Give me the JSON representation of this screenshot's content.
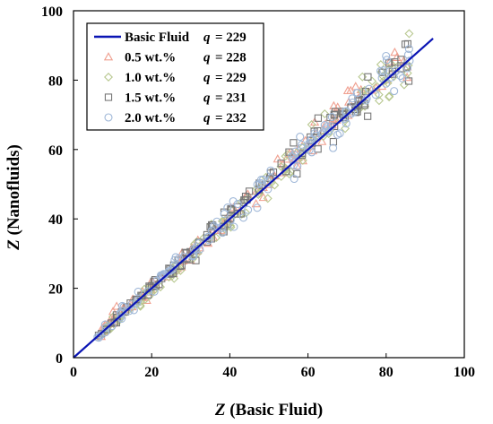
{
  "chart_data": {
    "type": "scatter",
    "title": "",
    "xlabel": {
      "var": "Z",
      "rest": " (Basic Fluid)"
    },
    "ylabel": {
      "var": "Z",
      "rest": " (Nanofluids)"
    },
    "xlim": [
      0,
      100
    ],
    "ylim": [
      0,
      100
    ],
    "xticks": [
      0,
      20,
      40,
      60,
      80,
      100
    ],
    "yticks": [
      0,
      20,
      40,
      60,
      80,
      100
    ],
    "grid": false,
    "legend_position": "top-left",
    "line": {
      "name": "Basic Fluid",
      "q_label": "q",
      "q_value": "= 229",
      "color": "#0a14b4",
      "x": [
        0,
        92
      ],
      "y": [
        0,
        92
      ]
    },
    "series": [
      {
        "name": "0.5 wt.%",
        "q_label": "q",
        "q_value": "= 228",
        "marker": "triangle",
        "color": "#f0a090",
        "offset": 0.4,
        "seed": 11
      },
      {
        "name": "1.0 wt.%",
        "q_label": "q",
        "q_value": "= 229",
        "marker": "diamond",
        "color": "#b8c890",
        "offset": -0.3,
        "seed": 23
      },
      {
        "name": "1.5 wt.%",
        "q_label": "q",
        "q_value": "= 231",
        "marker": "square",
        "color": "#787878",
        "offset": 0.0,
        "seed": 37
      },
      {
        "name": "2.0 wt.%",
        "q_label": "q",
        "q_value": "= 232",
        "marker": "circle",
        "color": "#a0b8d8",
        "offset": 0.2,
        "seed": 53
      }
    ],
    "x_sample_range": [
      5.5,
      86
    ],
    "points_per_series": 130
  }
}
